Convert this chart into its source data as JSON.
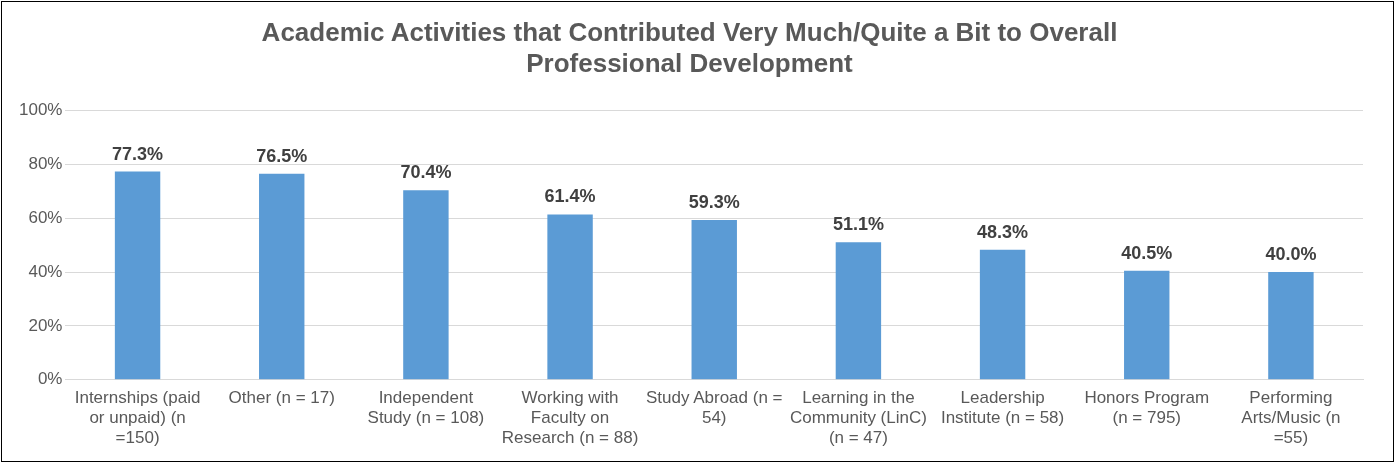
{
  "chart_data": {
    "type": "bar",
    "title": "Academic Activities that Contributed Very Much/Quite a Bit to Overall Professional Development",
    "categories": [
      "Internships (paid or unpaid) (n =150)",
      "Other (n = 17)",
      "Independent Study (n = 108)",
      "Working with Faculty on Research (n = 88)",
      "Study Abroad (n = 54)",
      "Learning in the Community (LinC) (n = 47)",
      "Leadership Institute (n = 58)",
      "Honors Program (n = 795)",
      "Performing Arts/Music (n =55)"
    ],
    "values": [
      77.3,
      76.5,
      70.4,
      61.4,
      59.3,
      51.1,
      48.3,
      40.5,
      40.0
    ],
    "value_labels": [
      "77.3%",
      "76.5%",
      "70.4%",
      "61.4%",
      "59.3%",
      "51.1%",
      "48.3%",
      "40.5%",
      "40.0%"
    ],
    "color": "#5b9bd5",
    "ylim": [
      0,
      100
    ],
    "yticks": [
      {
        "value": 0,
        "label": "0%"
      },
      {
        "value": 20,
        "label": "20%"
      },
      {
        "value": 40,
        "label": "40%"
      },
      {
        "value": 60,
        "label": "60%"
      },
      {
        "value": 80,
        "label": "80%"
      },
      {
        "value": 100,
        "label": "100%"
      }
    ],
    "grid": "y",
    "legend": false
  }
}
